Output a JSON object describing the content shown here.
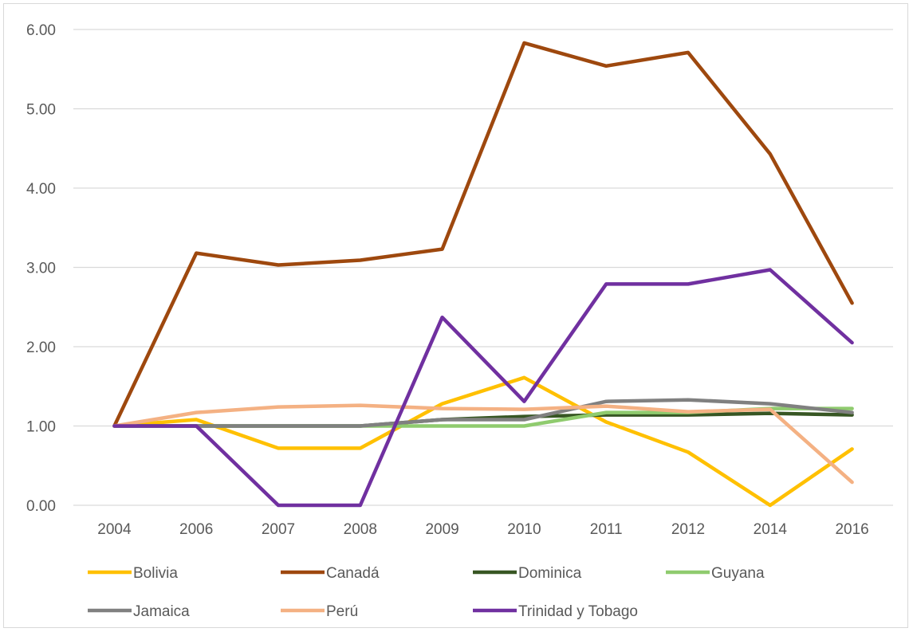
{
  "chart_data": {
    "type": "line",
    "title": "",
    "xlabel": "",
    "ylabel": "",
    "categories": [
      "2004",
      "2006",
      "2007",
      "2008",
      "2009",
      "2010",
      "2011",
      "2012",
      "2014",
      "2016"
    ],
    "y_ticks": [
      "0.00",
      "1.00",
      "2.00",
      "3.00",
      "4.00",
      "5.00",
      "6.00"
    ],
    "ylim": [
      0,
      6
    ],
    "grid": "horizontal",
    "legend_position": "bottom",
    "series": [
      {
        "name": "Bolivia",
        "color": "#FFC000",
        "values": [
          1.0,
          1.08,
          0.72,
          0.72,
          1.28,
          1.61,
          1.05,
          0.67,
          0.0,
          0.71
        ]
      },
      {
        "name": "Canadá",
        "color": "#9E480E",
        "values": [
          1.0,
          3.18,
          3.03,
          3.09,
          3.23,
          5.83,
          5.54,
          5.71,
          4.43,
          2.55
        ]
      },
      {
        "name": "Dominica",
        "color": "#375623",
        "values": [
          1.0,
          1.0,
          1.0,
          1.0,
          1.08,
          1.12,
          1.14,
          1.14,
          1.16,
          1.14
        ]
      },
      {
        "name": "Guyana",
        "color": "#8FCB6E",
        "values": [
          1.0,
          1.0,
          1.0,
          1.0,
          1.0,
          1.0,
          1.17,
          1.17,
          1.22,
          1.22
        ]
      },
      {
        "name": "Jamaica",
        "color": "#808080",
        "values": [
          1.0,
          1.0,
          1.0,
          1.0,
          1.08,
          1.08,
          1.31,
          1.33,
          1.28,
          1.17
        ]
      },
      {
        "name": "Perú",
        "color": "#F4B183",
        "values": [
          1.0,
          1.17,
          1.24,
          1.26,
          1.22,
          1.21,
          1.25,
          1.18,
          1.21,
          0.29
        ]
      },
      {
        "name": "Trinidad y Tobago",
        "color": "#7030A0",
        "values": [
          1.0,
          1.0,
          0.0,
          0.0,
          2.37,
          1.31,
          2.79,
          2.79,
          2.97,
          2.05
        ]
      }
    ]
  }
}
